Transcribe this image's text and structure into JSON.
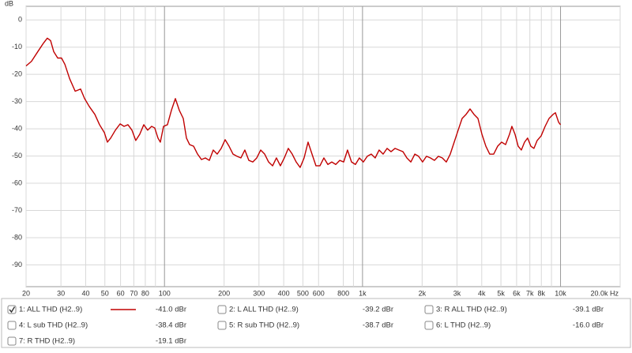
{
  "chart_data": {
    "type": "line",
    "y_label": "dB",
    "xscale": "log",
    "grid": true,
    "xlim": [
      20,
      20000
    ],
    "ylim": [
      -98,
      5
    ],
    "xticks": [
      20,
      30,
      40,
      50,
      60,
      70,
      80,
      100,
      200,
      300,
      400,
      500,
      600,
      800,
      {
        "value": 1000,
        "label": "1k"
      },
      {
        "value": 2000,
        "label": "2k"
      },
      {
        "value": 3000,
        "label": "3k"
      },
      {
        "value": 4000,
        "label": "4k"
      },
      {
        "value": 5000,
        "label": "5k"
      },
      {
        "value": 6000,
        "label": "6k"
      },
      {
        "value": 7000,
        "label": "7k"
      },
      {
        "value": 8000,
        "label": "8k"
      },
      {
        "value": 10000,
        "label": "10k"
      },
      {
        "value": 20000,
        "label": "20.0k Hz"
      }
    ],
    "xgrid_unlabeled": [
      90,
      900,
      9000
    ],
    "yticks": [
      0,
      -10,
      -20,
      -30,
      -40,
      -50,
      -60,
      -70,
      -80,
      -90
    ],
    "x": [
      20,
      21.3,
      22.9,
      24.5,
      25.6,
      26.6,
      27.6,
      28.9,
      30.2,
      31.4,
      33.2,
      35.4,
      37.7,
      39.5,
      41.7,
      44.5,
      47,
      49.7,
      51.5,
      53.5,
      56.5,
      59.7,
      62.5,
      65.4,
      68.5,
      71.6,
      75,
      78.6,
      82.2,
      86.1,
      89.3,
      92.7,
      95.3,
      98.9,
      103.5,
      108.4,
      113.5,
      118.8,
      124.4,
      129.1,
      133.9,
      140.3,
      146.9,
      153.8,
      160.8,
      168.4,
      176.3,
      184.6,
      193.3,
      202.4,
      211.9,
      221.9,
      232.3,
      243.2,
      254.6,
      266.7,
      279.2,
      292.4,
      306.1,
      320.6,
      335.6,
      351.6,
      367.5,
      384.8,
      402.9,
      421.9,
      441.7,
      462.5,
      484.3,
      507.1,
      530.9,
      555.9,
      582.1,
      609.5,
      638.2,
      668.2,
      699.7,
      732.6,
      767.1,
      803.2,
      840,
      880,
      921,
      964,
      1010,
      1057,
      1107,
      1159,
      1213,
      1271,
      1331,
      1393,
      1459,
      1528,
      1600,
      1675,
      1754,
      1837,
      1919,
      2010,
      2104,
      2203,
      2307,
      2416,
      2530,
      2649,
      2774,
      2904,
      3041,
      3184,
      3334,
      3491,
      3656,
      3828,
      4009,
      4197,
      4389,
      4596,
      4812,
      5039,
      5277,
      5525,
      5680,
      5890,
      6110,
      6340,
      6580,
      6820,
      7080,
      7340,
      7620,
      7980,
      8360,
      8750,
      9170,
      9420,
      9780,
      10000
    ],
    "series": [
      {
        "name": "1: ALL THD (H2..9)",
        "color": "#c00000",
        "values": [
          -16.9,
          -15.2,
          -11.7,
          -8.5,
          -6.7,
          -7.6,
          -11.7,
          -14.0,
          -14.0,
          -16.3,
          -21.6,
          -26.2,
          -25.4,
          -28.9,
          -31.8,
          -34.7,
          -38.5,
          -41.4,
          -44.9,
          -43.4,
          -40.5,
          -38.2,
          -39.1,
          -38.5,
          -40.5,
          -44.3,
          -42.0,
          -38.5,
          -40.5,
          -39.1,
          -39.7,
          -43.4,
          -44.9,
          -39.1,
          -38.5,
          -33.2,
          -28.9,
          -33.2,
          -36.2,
          -43.4,
          -45.8,
          -46.4,
          -49.3,
          -51.3,
          -50.7,
          -51.6,
          -47.8,
          -49.3,
          -47.2,
          -44.0,
          -46.4,
          -49.3,
          -50.1,
          -50.7,
          -47.8,
          -51.6,
          -52.2,
          -50.7,
          -47.8,
          -49.3,
          -52.2,
          -53.6,
          -50.7,
          -53.6,
          -50.7,
          -47.2,
          -49.3,
          -52.2,
          -54.2,
          -50.7,
          -44.9,
          -49.3,
          -53.6,
          -53.6,
          -50.7,
          -53.1,
          -52.2,
          -53.1,
          -51.6,
          -52.2,
          -47.8,
          -52.2,
          -53.1,
          -50.7,
          -52.2,
          -50.1,
          -49.3,
          -50.7,
          -47.8,
          -49.3,
          -47.2,
          -48.4,
          -47.2,
          -47.8,
          -48.4,
          -50.7,
          -52.2,
          -49.3,
          -50.1,
          -52.2,
          -50.1,
          -50.7,
          -51.6,
          -50.1,
          -50.7,
          -52.2,
          -49.3,
          -44.9,
          -40.5,
          -36.2,
          -34.7,
          -32.7,
          -34.7,
          -36.2,
          -42.0,
          -46.4,
          -49.3,
          -49.3,
          -46.4,
          -44.9,
          -45.8,
          -42.0,
          -39.1,
          -42.0,
          -46.4,
          -47.8,
          -44.9,
          -43.4,
          -46.4,
          -47.2,
          -44.3,
          -42.6,
          -39.1,
          -36.2,
          -34.7,
          -34.1,
          -37.6,
          -38.5
        ]
      }
    ]
  },
  "traces": [
    {
      "label": "1: ALL THD (H2..9)",
      "value": "-41.0 dBr",
      "color": "#c00000",
      "checked": true
    },
    {
      "label": "2: L ALL THD (H2..9)",
      "value": "-39.2 dBr",
      "color": "#2a8a2a",
      "checked": false
    },
    {
      "label": "3: R ALL THD (H2..9)",
      "value": "-39.1 dBr",
      "color": "#5a50c0",
      "checked": false
    },
    {
      "label": "4: L sub THD (H2..9)",
      "value": "-38.4 dBr",
      "color": "#e89a30",
      "checked": false
    },
    {
      "label": "5: R sub THD (H2..9)",
      "value": "-38.7 dBr",
      "color": "#3a30c8",
      "checked": false
    },
    {
      "label": "6: L THD (H2..9)",
      "value": "-16.0 dBr",
      "color": "#c08a10",
      "checked": false
    },
    {
      "label": "7: R THD (H2..9)",
      "value": "-19.1 dBr",
      "color": "#18a050",
      "checked": false
    }
  ]
}
